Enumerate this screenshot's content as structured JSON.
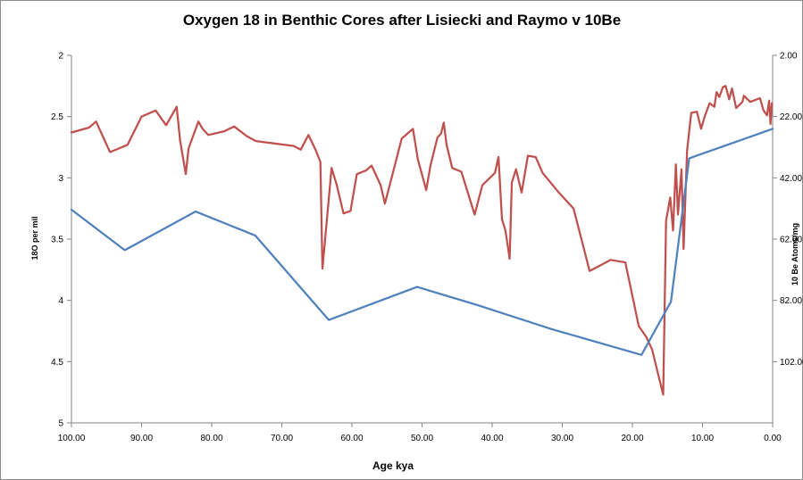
{
  "chart_data": {
    "type": "line",
    "title": "Oxygen 18 in Benthic Cores after Lisiecki and Raymo v 10Be",
    "xlabel": "Age kya",
    "ylabel": "18O per mil",
    "y2label": "10 Be Atoms/mg",
    "x_range": [
      100,
      0
    ],
    "x_reversed": true,
    "ylim": [
      2,
      5
    ],
    "y_inverted": true,
    "y2lim": [
      2,
      122
    ],
    "y2_inverted": true,
    "xticks": [
      "100.00",
      "90.00",
      "80.00",
      "70.00",
      "60.00",
      "50.00",
      "40.00",
      "30.00",
      "20.00",
      "10.00",
      "0.00"
    ],
    "yticks": [
      "2",
      "2.5",
      "3",
      "3.5",
      "4",
      "4.5",
      "5"
    ],
    "y2ticks": [
      "2.00",
      "22.00",
      "42.00",
      "62.00",
      "82.00",
      "102.00"
    ],
    "grid": false,
    "legend": "none",
    "series": [
      {
        "axis": "left",
        "color": "#c0504d",
        "points": [
          [
            100,
            2.63
          ],
          [
            97.5,
            2.59
          ],
          [
            96.5,
            2.54
          ],
          [
            94.5,
            2.79
          ],
          [
            92,
            2.73
          ],
          [
            90,
            2.5
          ],
          [
            88,
            2.45
          ],
          [
            86.5,
            2.57
          ],
          [
            85,
            2.42
          ],
          [
            84.5,
            2.7
          ],
          [
            83.7,
            2.97
          ],
          [
            83.3,
            2.76
          ],
          [
            81.9,
            2.54
          ],
          [
            81.3,
            2.6
          ],
          [
            80.5,
            2.65
          ],
          [
            78.2,
            2.62
          ],
          [
            76.8,
            2.58
          ],
          [
            75,
            2.66
          ],
          [
            73.7,
            2.7
          ],
          [
            68.3,
            2.74
          ],
          [
            67.3,
            2.77
          ],
          [
            66.2,
            2.65
          ],
          [
            65.2,
            2.77
          ],
          [
            64.5,
            2.87
          ],
          [
            64.2,
            3.74
          ],
          [
            63.5,
            3.3
          ],
          [
            62.9,
            2.92
          ],
          [
            62.2,
            3.05
          ],
          [
            61.2,
            3.29
          ],
          [
            60.2,
            3.27
          ],
          [
            59.3,
            2.97
          ],
          [
            58,
            2.94
          ],
          [
            57.2,
            2.9
          ],
          [
            55.9,
            3.06
          ],
          [
            55.3,
            3.21
          ],
          [
            54.2,
            2.97
          ],
          [
            52.9,
            2.68
          ],
          [
            51.3,
            2.6
          ],
          [
            50.6,
            2.85
          ],
          [
            49.4,
            3.1
          ],
          [
            48.8,
            2.9
          ],
          [
            47.8,
            2.67
          ],
          [
            47.3,
            2.64
          ],
          [
            46.9,
            2.55
          ],
          [
            46.5,
            2.73
          ],
          [
            45.7,
            2.92
          ],
          [
            44.4,
            2.95
          ],
          [
            42.5,
            3.3
          ],
          [
            41.4,
            3.06
          ],
          [
            39.6,
            2.96
          ],
          [
            39.1,
            2.83
          ],
          [
            38.6,
            3.34
          ],
          [
            38.1,
            3.43
          ],
          [
            37.5,
            3.66
          ],
          [
            37.2,
            3.04
          ],
          [
            36.6,
            2.93
          ],
          [
            35.8,
            3.12
          ],
          [
            34.9,
            2.82
          ],
          [
            33.8,
            2.83
          ],
          [
            32.8,
            2.96
          ],
          [
            30.5,
            3.12
          ],
          [
            28.4,
            3.25
          ],
          [
            26.1,
            3.76
          ],
          [
            23.1,
            3.67
          ],
          [
            21,
            3.69
          ],
          [
            19.1,
            4.21
          ],
          [
            18,
            4.3
          ],
          [
            17.2,
            4.4
          ],
          [
            15.6,
            4.77
          ],
          [
            15.2,
            3.35
          ],
          [
            14.6,
            3.16
          ],
          [
            14.2,
            3.43
          ],
          [
            13.8,
            2.89
          ],
          [
            13.5,
            3.3
          ],
          [
            13,
            2.93
          ],
          [
            12.7,
            3.58
          ],
          [
            12.2,
            2.78
          ],
          [
            11.6,
            2.47
          ],
          [
            10.8,
            2.46
          ],
          [
            10.5,
            2.53
          ],
          [
            10.2,
            2.6
          ],
          [
            9.7,
            2.5
          ],
          [
            9,
            2.39
          ],
          [
            8.3,
            2.42
          ],
          [
            8,
            2.3
          ],
          [
            7.6,
            2.34
          ],
          [
            7.1,
            2.26
          ],
          [
            6.7,
            2.25
          ],
          [
            6.2,
            2.36
          ],
          [
            5.8,
            2.27
          ],
          [
            5.2,
            2.43
          ],
          [
            4.3,
            2.38
          ],
          [
            4.1,
            2.33
          ],
          [
            3.2,
            2.38
          ],
          [
            1.8,
            2.35
          ],
          [
            1.3,
            2.45
          ],
          [
            0.8,
            2.49
          ],
          [
            0.5,
            2.37
          ],
          [
            0.3,
            2.56
          ],
          [
            0.1,
            2.39
          ]
        ]
      },
      {
        "axis": "right",
        "color": "#4f81bd",
        "points": [
          [
            100,
            52.4
          ],
          [
            92.4,
            65.6
          ],
          [
            82.3,
            53.0
          ],
          [
            73.8,
            60.8
          ],
          [
            63.3,
            88.4
          ],
          [
            50.7,
            77.6
          ],
          [
            42,
            83.6
          ],
          [
            31.5,
            91.4
          ],
          [
            18.7,
            99.8
          ],
          [
            14.5,
            82.4
          ],
          [
            11.9,
            35.6
          ],
          [
            0,
            26.0
          ]
        ]
      }
    ]
  }
}
